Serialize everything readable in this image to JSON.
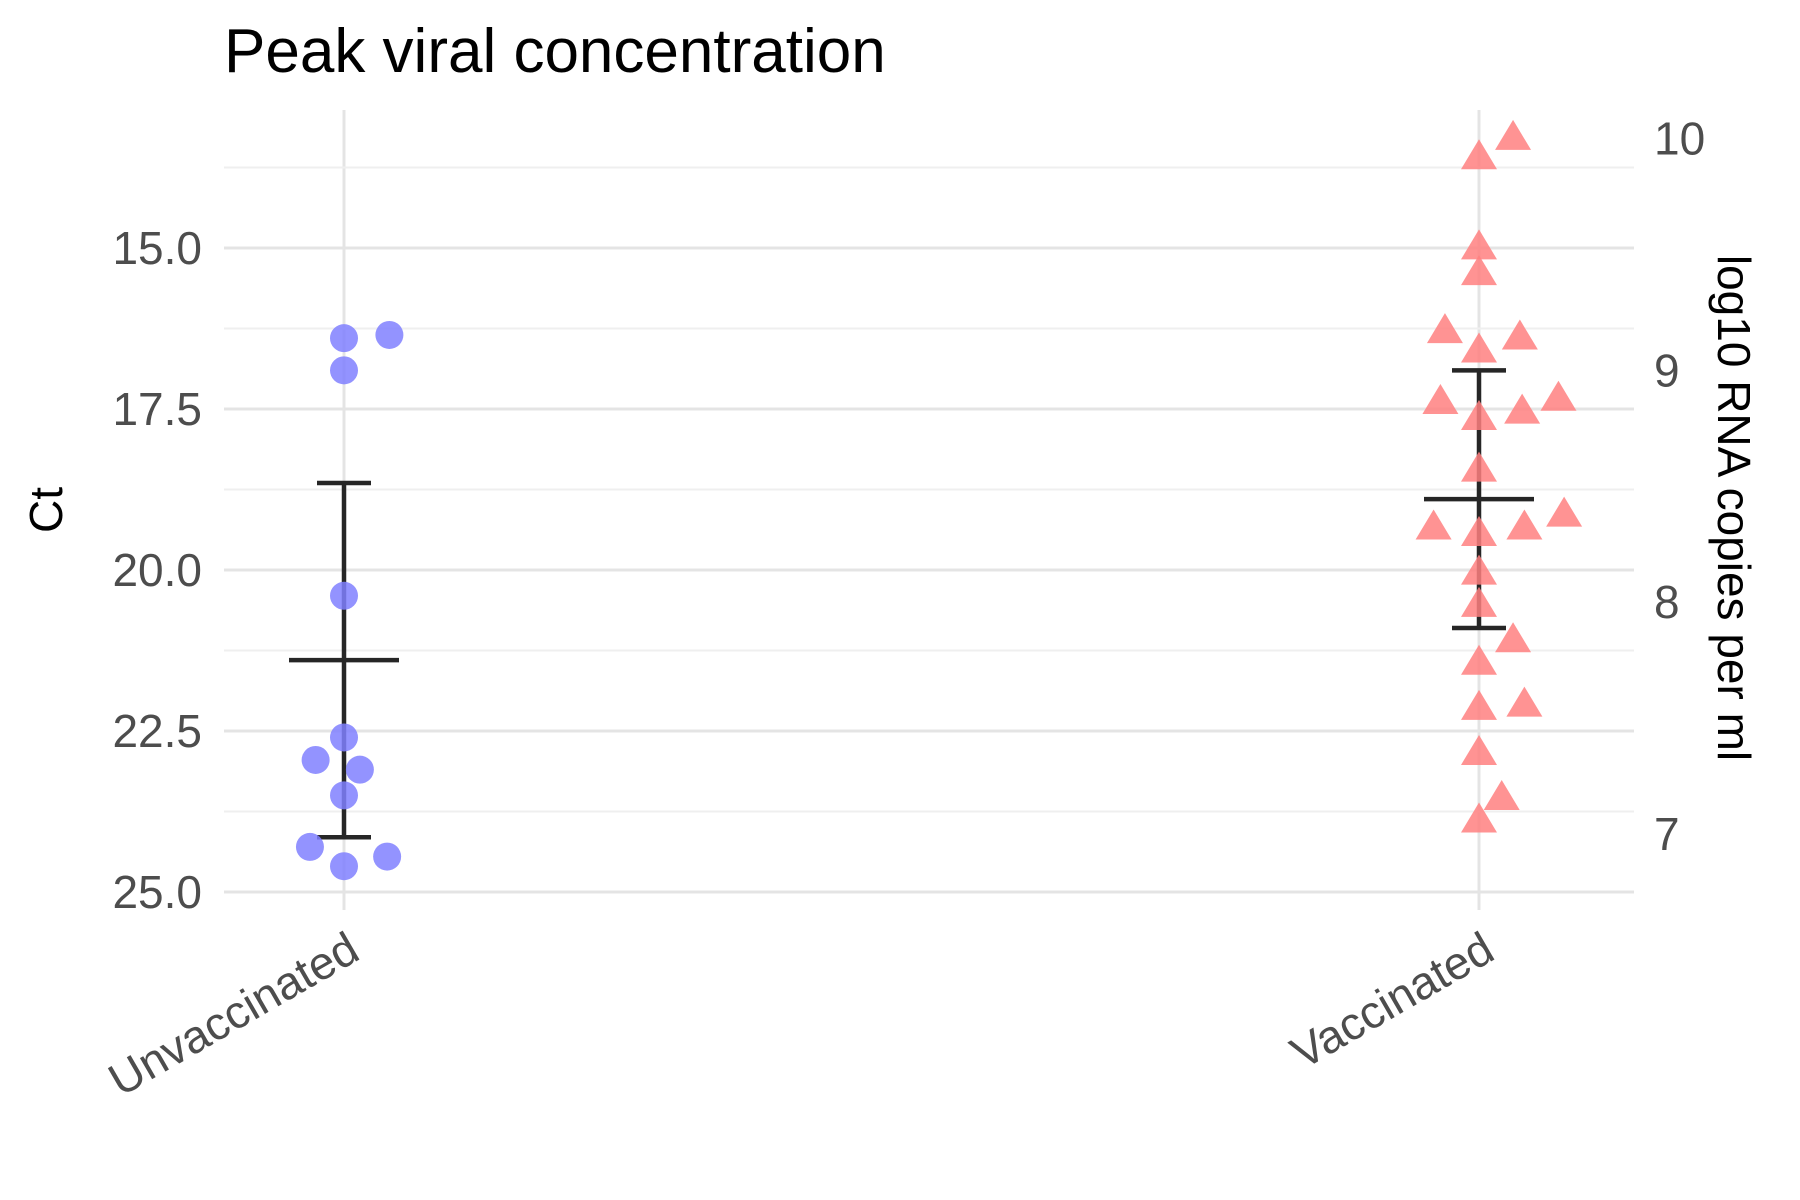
{
  "chart_data": {
    "type": "scatter",
    "title": "Peak viral concentration",
    "xlabel": "",
    "ylabel": "Ct",
    "y2label": "log10 RNA copies per ml",
    "y_reversed": true,
    "ylim": [
      12.5,
      25.0
    ],
    "yticks": [
      "15.0",
      "17.5",
      "20.0",
      "22.5",
      "25.0"
    ],
    "y2ticks": [
      "7",
      "8",
      "9",
      "10"
    ],
    "y2_mapping_ct_at": {
      "7": 24.1,
      "8": 20.5,
      "9": 16.9,
      "10": 13.3
    },
    "grid": true,
    "legend": "none",
    "categories": [
      "Unvaccinated",
      "Vaccinated"
    ],
    "series": [
      {
        "category": "Unvaccinated",
        "marker": "circle",
        "color": "#8080ff",
        "points": [
          {
            "dx": 0.0,
            "y": 16.4
          },
          {
            "dx": 0.04,
            "y": 16.35
          },
          {
            "dx": 0.0,
            "y": 16.9
          },
          {
            "dx": 0.0,
            "y": 20.4
          },
          {
            "dx": 0.0,
            "y": 22.6
          },
          {
            "dx": -0.025,
            "y": 22.95
          },
          {
            "dx": 0.014,
            "y": 23.1
          },
          {
            "dx": 0.0,
            "y": 23.5
          },
          {
            "dx": -0.03,
            "y": 24.3
          },
          {
            "dx": 0.038,
            "y": 24.45
          },
          {
            "dx": 0.0,
            "y": 24.6
          }
        ],
        "mean": 21.4,
        "error_low": 18.65,
        "error_high": 24.15
      },
      {
        "category": "Vaccinated",
        "marker": "triangle",
        "color": "#ff8080",
        "points": [
          {
            "dx": 0.0,
            "y": 13.6
          },
          {
            "dx": 0.03,
            "y": 13.3
          },
          {
            "dx": 0.0,
            "y": 15.0
          },
          {
            "dx": 0.0,
            "y": 15.4
          },
          {
            "dx": -0.03,
            "y": 16.3
          },
          {
            "dx": 0.0,
            "y": 16.6
          },
          {
            "dx": 0.036,
            "y": 16.4
          },
          {
            "dx": -0.034,
            "y": 17.4
          },
          {
            "dx": 0.0,
            "y": 17.65
          },
          {
            "dx": 0.038,
            "y": 17.55
          },
          {
            "dx": 0.07,
            "y": 17.35
          },
          {
            "dx": 0.0,
            "y": 18.45
          },
          {
            "dx": -0.04,
            "y": 19.35
          },
          {
            "dx": 0.0,
            "y": 19.45
          },
          {
            "dx": 0.04,
            "y": 19.35
          },
          {
            "dx": 0.075,
            "y": 19.15
          },
          {
            "dx": 0.0,
            "y": 20.05
          },
          {
            "dx": 0.0,
            "y": 20.55
          },
          {
            "dx": 0.03,
            "y": 21.1
          },
          {
            "dx": 0.0,
            "y": 21.45
          },
          {
            "dx": 0.0,
            "y": 22.15
          },
          {
            "dx": 0.04,
            "y": 22.1
          },
          {
            "dx": 0.0,
            "y": 22.85
          },
          {
            "dx": 0.02,
            "y": 23.55
          },
          {
            "dx": 0.0,
            "y": 23.9
          }
        ],
        "mean": 18.9,
        "error_low": 16.9,
        "error_high": 20.9
      }
    ]
  }
}
